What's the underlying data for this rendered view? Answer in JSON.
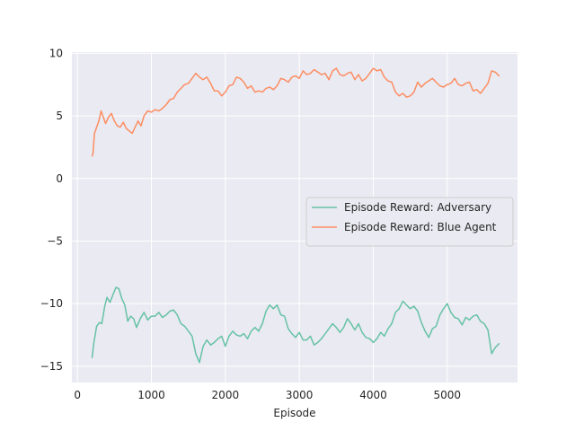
{
  "chart_data": {
    "type": "line",
    "title": "",
    "xlabel": "Episode",
    "ylabel": "",
    "xlim": [
      -75,
      5950
    ],
    "ylim": [
      -16.3,
      10.1
    ],
    "xticks": [
      0,
      1000,
      2000,
      3000,
      4000,
      5000
    ],
    "xtick_labels": [
      "0",
      "1000",
      "2000",
      "3000",
      "4000",
      "5000"
    ],
    "yticks": [
      -15,
      -10,
      -5,
      0,
      5,
      10
    ],
    "ytick_labels": [
      "−15",
      "−10",
      "−5",
      "0",
      "5",
      "10"
    ],
    "grid": true,
    "background": "#eaeaf2",
    "legend_position": "center-right",
    "series": [
      {
        "name": "Episode Reward: Adversary",
        "color": "#66c2a5",
        "x": [
          200,
          220,
          260,
          300,
          330,
          370,
          400,
          440,
          480,
          520,
          560,
          600,
          640,
          680,
          720,
          760,
          800,
          850,
          900,
          950,
          1000,
          1050,
          1100,
          1150,
          1200,
          1250,
          1300,
          1350,
          1400,
          1450,
          1500,
          1550,
          1600,
          1650,
          1700,
          1750,
          1800,
          1850,
          1900,
          1950,
          2000,
          2050,
          2100,
          2150,
          2200,
          2250,
          2300,
          2350,
          2400,
          2450,
          2500,
          2550,
          2600,
          2650,
          2700,
          2750,
          2800,
          2850,
          2900,
          2950,
          3000,
          3050,
          3100,
          3150,
          3200,
          3250,
          3300,
          3350,
          3400,
          3450,
          3500,
          3550,
          3600,
          3650,
          3700,
          3750,
          3800,
          3850,
          3900,
          3950,
          4000,
          4050,
          4100,
          4150,
          4200,
          4250,
          4300,
          4350,
          4400,
          4450,
          4500,
          4550,
          4600,
          4650,
          4700,
          4750,
          4800,
          4850,
          4900,
          4950,
          5000,
          5050,
          5100,
          5150,
          5200,
          5250,
          5300,
          5350,
          5400,
          5450,
          5500,
          5550,
          5600,
          5650,
          5700
        ],
        "y": [
          -14.3,
          -13.2,
          -11.8,
          -11.5,
          -11.6,
          -10.2,
          -9.5,
          -9.9,
          -9.3,
          -8.7,
          -8.8,
          -9.6,
          -10.1,
          -11.4,
          -11.0,
          -11.2,
          -11.9,
          -11.2,
          -10.7,
          -11.3,
          -11.0,
          -11.0,
          -10.7,
          -11.1,
          -10.9,
          -10.6,
          -10.5,
          -10.9,
          -11.6,
          -11.8,
          -12.2,
          -12.6,
          -14.0,
          -14.7,
          -13.4,
          -12.9,
          -13.3,
          -13.1,
          -12.8,
          -12.6,
          -13.4,
          -12.6,
          -12.2,
          -12.5,
          -12.6,
          -12.4,
          -12.8,
          -12.2,
          -11.9,
          -12.2,
          -11.6,
          -10.6,
          -10.1,
          -10.4,
          -10.1,
          -10.9,
          -11.0,
          -12.0,
          -12.4,
          -12.7,
          -12.3,
          -12.9,
          -12.9,
          -12.6,
          -13.3,
          -13.1,
          -12.8,
          -12.4,
          -12.0,
          -11.6,
          -11.9,
          -12.3,
          -11.9,
          -11.2,
          -11.6,
          -12.1,
          -11.6,
          -12.3,
          -12.7,
          -12.8,
          -13.1,
          -12.8,
          -12.3,
          -12.6,
          -12.0,
          -11.6,
          -10.7,
          -10.4,
          -9.8,
          -10.1,
          -10.4,
          -10.2,
          -10.6,
          -11.5,
          -12.2,
          -12.7,
          -12.0,
          -11.8,
          -10.9,
          -10.4,
          -10.0,
          -10.7,
          -11.1,
          -11.2,
          -11.7,
          -11.1,
          -11.3,
          -11.0,
          -10.9,
          -11.4,
          -11.6,
          -12.1,
          -14.0,
          -13.5,
          -13.2
        ]
      },
      {
        "name": "Episode Reward: Blue Agent",
        "color": "#fc8d62",
        "x": [
          200,
          210,
          230,
          260,
          290,
          320,
          350,
          380,
          420,
          460,
          500,
          540,
          580,
          620,
          660,
          700,
          740,
          780,
          820,
          860,
          900,
          950,
          1000,
          1050,
          1100,
          1150,
          1200,
          1250,
          1300,
          1350,
          1400,
          1450,
          1500,
          1550,
          1600,
          1650,
          1700,
          1750,
          1800,
          1850,
          1900,
          1950,
          2000,
          2050,
          2100,
          2150,
          2200,
          2250,
          2300,
          2350,
          2400,
          2450,
          2500,
          2550,
          2600,
          2650,
          2700,
          2750,
          2800,
          2850,
          2900,
          2950,
          3000,
          3050,
          3100,
          3150,
          3200,
          3250,
          3300,
          3350,
          3400,
          3450,
          3500,
          3550,
          3600,
          3650,
          3700,
          3750,
          3800,
          3850,
          3900,
          3950,
          4000,
          4050,
          4100,
          4150,
          4200,
          4250,
          4300,
          4350,
          4400,
          4450,
          4500,
          4550,
          4600,
          4650,
          4700,
          4750,
          4800,
          4850,
          4900,
          4950,
          5000,
          5050,
          5100,
          5150,
          5200,
          5250,
          5300,
          5350,
          5400,
          5450,
          5500,
          5550,
          5600,
          5650,
          5700
        ],
        "y": [
          1.8,
          2.0,
          3.6,
          4.1,
          4.6,
          5.4,
          4.9,
          4.4,
          4.9,
          5.2,
          4.6,
          4.2,
          4.1,
          4.5,
          4.0,
          3.8,
          3.6,
          4.1,
          4.6,
          4.2,
          5.0,
          5.4,
          5.3,
          5.5,
          5.4,
          5.6,
          5.9,
          6.3,
          6.4,
          6.9,
          7.2,
          7.5,
          7.6,
          8.0,
          8.4,
          8.1,
          7.9,
          8.1,
          7.6,
          7.0,
          7.0,
          6.6,
          6.9,
          7.4,
          7.5,
          8.1,
          8.0,
          7.7,
          7.2,
          7.4,
          6.9,
          7.0,
          6.9,
          7.2,
          7.3,
          7.1,
          7.4,
          8.0,
          7.9,
          7.7,
          8.1,
          8.2,
          8.0,
          8.6,
          8.3,
          8.4,
          8.7,
          8.5,
          8.3,
          8.4,
          7.9,
          8.6,
          8.8,
          8.3,
          8.2,
          8.4,
          8.5,
          7.9,
          8.3,
          7.8,
          8.0,
          8.4,
          8.8,
          8.6,
          8.7,
          8.1,
          7.8,
          7.7,
          6.9,
          6.6,
          6.8,
          6.5,
          6.6,
          6.9,
          7.7,
          7.3,
          7.6,
          7.8,
          8.0,
          7.7,
          7.4,
          7.3,
          7.5,
          7.6,
          8.0,
          7.5,
          7.4,
          7.6,
          7.7,
          7.0,
          7.1,
          6.8,
          7.2,
          7.6,
          8.6,
          8.5,
          8.2
        ]
      }
    ]
  }
}
